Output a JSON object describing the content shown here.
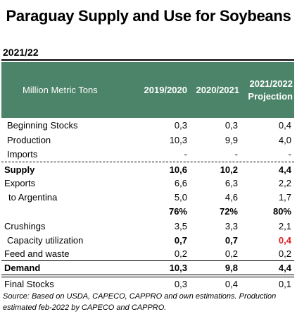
{
  "title": "Paraguay Supply and Use for Soybeans",
  "year": "2021/22",
  "header": {
    "label": "Million Metric Tons",
    "col1": "2019/2020",
    "col2": "2020/2021",
    "col3_line1": "2021/2022",
    "col3_line2": "Projection"
  },
  "rows": [
    {
      "label": "Beginning Stocks",
      "v1": "0,3",
      "v2": "0,3",
      "v3": "0,4"
    },
    {
      "label": "Production",
      "v1": "10,3",
      "v2": "9,9",
      "v3": "4,0"
    },
    {
      "label": "Imports",
      "v1": "-",
      "v2": "-",
      "v3": "-"
    },
    {
      "label": "Supply",
      "v1": "10,6",
      "v2": "10,2",
      "v3": "4,4"
    },
    {
      "label": "Exports",
      "v1": "6,6",
      "v2": "6,3",
      "v3": "2,2"
    },
    {
      "label": "to Argentina",
      "v1": "5,0",
      "v2": "4,6",
      "v3": "1,7"
    },
    {
      "label": "",
      "v1": "76%",
      "v2": "72%",
      "v3": "80%"
    },
    {
      "label": "Crushings",
      "v1": "3,5",
      "v2": "3,3",
      "v3": "2,1"
    },
    {
      "label": "Capacity utilization",
      "v1": "0,7",
      "v2": "0,7",
      "v3": "0,4"
    },
    {
      "label": "Feed and waste",
      "v1": "0,2",
      "v2": "0,2",
      "v3": "0,2"
    },
    {
      "label": "Demand",
      "v1": "10,3",
      "v2": "9,8",
      "v3": "4,4"
    },
    {
      "label": "Final Stocks",
      "v1": "0,3",
      "v2": "0,4",
      "v3": "0,1"
    }
  ],
  "source": "Source: Based on USDA, CAPECO, CAPPRO and own estimations.  Production estimated feb-2022 by CAPECO and CAPPRO.",
  "colors": {
    "header_bg": "#4b8468",
    "highlight": "#e02020"
  }
}
